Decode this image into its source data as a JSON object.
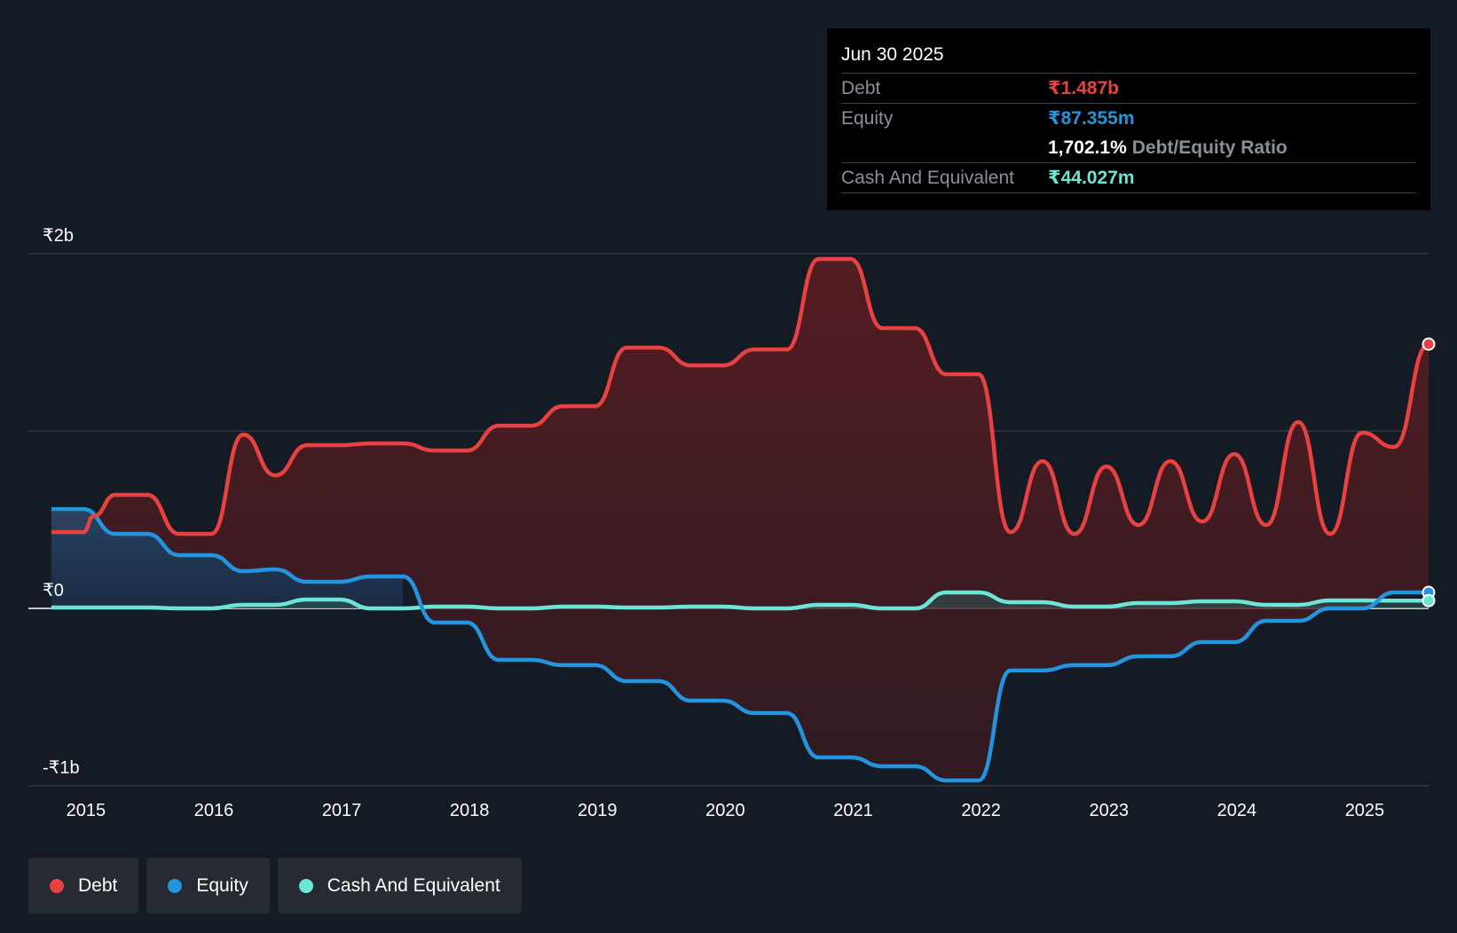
{
  "tooltip": {
    "date": "Jun 30 2025",
    "debt_label": "Debt",
    "debt_value": "₹1.487b",
    "equity_label": "Equity",
    "equity_value": "₹87.355m",
    "ratio_value": "1,702.1%",
    "ratio_label": "Debt/Equity Ratio",
    "cash_label": "Cash And Equivalent",
    "cash_value": "₹44.027m"
  },
  "legend": [
    {
      "label": "Debt",
      "color": "#e84142"
    },
    {
      "label": "Equity",
      "color": "#2394df"
    },
    {
      "label": "Cash And Equivalent",
      "color": "#6ce5d6"
    }
  ],
  "chart_data": {
    "type": "line",
    "title": "",
    "xlabel": "",
    "ylabel": "",
    "ylim": [
      -1.0,
      2.0
    ],
    "y_ticks": [
      {
        "value": 2.0,
        "label": "₹2b"
      },
      {
        "value": 0.0,
        "label": "₹0"
      },
      {
        "value": -1.0,
        "label": "-₹1b"
      }
    ],
    "x_ticks": [
      "2015",
      "2016",
      "2017",
      "2018",
      "2019",
      "2020",
      "2021",
      "2022",
      "2023",
      "2024",
      "2025"
    ],
    "xlim": [
      2014.55,
      2025.5
    ],
    "series": [
      {
        "name": "Debt",
        "color": "#e84142",
        "x": [
          2014.73,
          2014.98,
          2015.06,
          2015.23,
          2015.48,
          2015.73,
          2015.98,
          2016.23,
          2016.48,
          2016.73,
          2016.98,
          2017.23,
          2017.48,
          2017.73,
          2017.98,
          2018.23,
          2018.48,
          2018.73,
          2018.98,
          2019.23,
          2019.48,
          2019.73,
          2019.98,
          2020.23,
          2020.48,
          2020.73,
          2020.98,
          2021.23,
          2021.48,
          2021.73,
          2021.98,
          2022.23,
          2022.48,
          2022.73,
          2022.98,
          2023.23,
          2023.48,
          2023.73,
          2023.98,
          2024.23,
          2024.48,
          2024.73,
          2024.98,
          2025.23,
          2025.5
        ],
        "values": [
          0.43,
          0.43,
          0.52,
          0.64,
          0.64,
          0.42,
          0.42,
          0.98,
          0.75,
          0.92,
          0.92,
          0.93,
          0.93,
          0.89,
          0.89,
          1.03,
          1.03,
          1.14,
          1.14,
          1.47,
          1.47,
          1.37,
          1.37,
          1.46,
          1.46,
          1.97,
          1.97,
          1.58,
          1.58,
          1.32,
          1.32,
          0.43,
          0.83,
          0.42,
          0.8,
          0.47,
          0.83,
          0.49,
          0.87,
          0.47,
          1.05,
          0.42,
          0.99,
          0.91,
          1.49
        ]
      },
      {
        "name": "Equity",
        "color": "#2394df",
        "x": [
          2014.73,
          2014.98,
          2015.23,
          2015.48,
          2015.73,
          2015.98,
          2016.23,
          2016.48,
          2016.73,
          2016.98,
          2017.23,
          2017.48,
          2017.73,
          2017.98,
          2018.23,
          2018.48,
          2018.73,
          2018.98,
          2019.23,
          2019.48,
          2019.73,
          2019.98,
          2020.23,
          2020.48,
          2020.73,
          2020.98,
          2021.23,
          2021.48,
          2021.73,
          2021.98,
          2022.23,
          2022.48,
          2022.73,
          2022.98,
          2023.23,
          2023.48,
          2023.73,
          2023.98,
          2024.23,
          2024.48,
          2024.73,
          2024.98,
          2025.23,
          2025.5
        ],
        "values": [
          0.56,
          0.56,
          0.42,
          0.42,
          0.3,
          0.3,
          0.21,
          0.22,
          0.15,
          0.15,
          0.18,
          0.18,
          -0.08,
          -0.08,
          -0.29,
          -0.29,
          -0.32,
          -0.32,
          -0.41,
          -0.41,
          -0.52,
          -0.52,
          -0.59,
          -0.59,
          -0.84,
          -0.84,
          -0.89,
          -0.89,
          -0.97,
          -0.97,
          -0.35,
          -0.35,
          -0.32,
          -0.32,
          -0.27,
          -0.27,
          -0.19,
          -0.19,
          -0.07,
          -0.07,
          0.0,
          0.0,
          0.09,
          0.09
        ]
      },
      {
        "name": "Cash And Equivalent",
        "color": "#6ce5d6",
        "x": [
          2014.73,
          2014.98,
          2015.23,
          2015.48,
          2015.73,
          2015.98,
          2016.23,
          2016.48,
          2016.73,
          2016.98,
          2017.23,
          2017.48,
          2017.73,
          2017.98,
          2018.23,
          2018.48,
          2018.73,
          2018.98,
          2019.23,
          2019.48,
          2019.73,
          2019.98,
          2020.23,
          2020.48,
          2020.73,
          2020.98,
          2021.23,
          2021.48,
          2021.73,
          2021.98,
          2022.23,
          2022.48,
          2022.73,
          2022.98,
          2023.23,
          2023.48,
          2023.73,
          2023.98,
          2024.23,
          2024.48,
          2024.73,
          2024.98,
          2025.23,
          2025.5
        ],
        "values": [
          0.005,
          0.005,
          0.005,
          0.005,
          0.0,
          0.0,
          0.02,
          0.02,
          0.05,
          0.05,
          0.0,
          0.0,
          0.01,
          0.01,
          0.0,
          0.0,
          0.01,
          0.01,
          0.005,
          0.005,
          0.01,
          0.01,
          0.0,
          0.0,
          0.02,
          0.02,
          0.0,
          0.0,
          0.09,
          0.09,
          0.035,
          0.035,
          0.01,
          0.01,
          0.03,
          0.03,
          0.04,
          0.04,
          0.02,
          0.02,
          0.045,
          0.045,
          0.044,
          0.044
        ]
      }
    ]
  }
}
